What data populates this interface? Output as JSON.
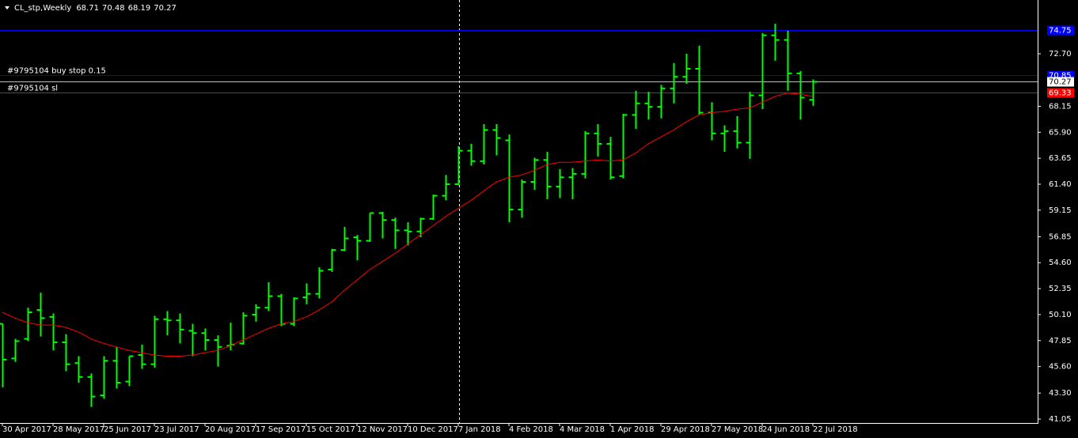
{
  "chart_data": {
    "type": "ohlc",
    "symbol": "CL_stp,Weekly",
    "categories": [
      "30 Apr 2017",
      null,
      null,
      null,
      "28 May 2017",
      null,
      null,
      null,
      "25 Jun 2017",
      null,
      null,
      null,
      "23 Jul 2017",
      null,
      null,
      null,
      "20 Aug 2017",
      null,
      null,
      null,
      "17 Sep 2017",
      null,
      null,
      null,
      "15 Oct 2017",
      null,
      null,
      null,
      "12 Nov 2017",
      null,
      null,
      null,
      "10 Dec 2017",
      null,
      null,
      null,
      "7 Jan 2018",
      null,
      null,
      null,
      "4 Feb 2018",
      null,
      null,
      null,
      "4 Mar 2018",
      null,
      null,
      null,
      "1 Apr 2018",
      null,
      null,
      null,
      "29 Apr 2018",
      null,
      null,
      null,
      "27 May 2018",
      null,
      null,
      null,
      "24 Jun 2018",
      null,
      null,
      null,
      "22 Jul 2018"
    ],
    "open": [
      49.3,
      46.3,
      48.0,
      50.5,
      49.9,
      47.7,
      45.9,
      44.7,
      43.1,
      46.1,
      44.3,
      46.6,
      45.8,
      49.7,
      49.6,
      48.7,
      48.5,
      47.9,
      47.4,
      47.6,
      50.1,
      50.7,
      51.7,
      49.3,
      51.6,
      51.9,
      54.0,
      55.7,
      56.8,
      56.5,
      58.9,
      58.3,
      57.4,
      57.3,
      58.4,
      60.4,
      61.4,
      64.3,
      63.4,
      66.1,
      65.2,
      59.2,
      61.6,
      63.5,
      61.2,
      62.0,
      62.3,
      65.8,
      64.9,
      62.1,
      67.4,
      68.4,
      68.1,
      69.7,
      70.7,
      71.4,
      67.6,
      65.8,
      66.0,
      65.0,
      69.1,
      74.3,
      73.9,
      71.0,
      68.71
    ],
    "high": [
      49.3,
      48.0,
      50.7,
      52.0,
      50.2,
      48.4,
      46.5,
      45.0,
      46.5,
      47.3,
      46.5,
      47.5,
      50.0,
      50.4,
      50.2,
      49.3,
      48.9,
      48.3,
      49.4,
      50.3,
      51.0,
      52.9,
      51.9,
      51.6,
      52.8,
      54.2,
      55.8,
      57.7,
      57.0,
      58.9,
      59.0,
      58.5,
      58.1,
      58.5,
      60.5,
      62.2,
      64.7,
      64.9,
      66.6,
      66.6,
      65.7,
      61.8,
      63.7,
      64.2,
      62.7,
      62.8,
      66.0,
      66.6,
      65.5,
      67.5,
      69.5,
      69.4,
      70.0,
      71.9,
      72.7,
      73.4,
      68.5,
      66.5,
      67.3,
      69.4,
      74.5,
      75.3,
      74.7,
      71.2,
      70.48
    ],
    "low": [
      43.8,
      46.0,
      47.8,
      48.2,
      47.0,
      45.2,
      44.2,
      42.1,
      42.8,
      43.7,
      43.9,
      45.4,
      45.5,
      48.3,
      47.6,
      46.5,
      47.0,
      45.6,
      47.0,
      47.5,
      49.5,
      50.4,
      49.1,
      49.1,
      51.0,
      51.5,
      53.8,
      55.6,
      54.8,
      56.4,
      56.7,
      55.8,
      56.1,
      56.8,
      58.3,
      60.0,
      61.3,
      63.0,
      63.1,
      63.9,
      58.1,
      58.5,
      60.9,
      60.1,
      60.2,
      60.1,
      61.9,
      63.8,
      61.8,
      61.9,
      66.2,
      67.0,
      67.1,
      68.4,
      70.1,
      67.4,
      65.2,
      64.2,
      64.5,
      63.6,
      67.9,
      72.1,
      69.5,
      67.0,
      68.19
    ],
    "close": [
      46.2,
      47.8,
      50.3,
      49.8,
      47.7,
      45.8,
      44.7,
      43.0,
      46.1,
      44.2,
      46.5,
      45.8,
      49.7,
      49.6,
      48.8,
      48.5,
      47.9,
      47.3,
      47.5,
      50.0,
      50.7,
      51.7,
      49.3,
      51.5,
      51.9,
      53.9,
      55.7,
      56.7,
      56.5,
      58.9,
      58.3,
      57.4,
      57.3,
      58.4,
      60.4,
      61.4,
      64.3,
      63.4,
      66.1,
      65.4,
      59.2,
      61.6,
      63.5,
      61.2,
      62.0,
      62.3,
      65.8,
      64.9,
      62.0,
      67.4,
      68.4,
      68.1,
      69.7,
      70.7,
      71.4,
      67.6,
      65.8,
      66.0,
      65.0,
      69.1,
      74.3,
      73.9,
      71.0,
      68.9,
      70.27
    ],
    "bar_color": "#00ff00",
    "ma": {
      "color": "#ff0000",
      "values": [
        50.3,
        49.8,
        49.4,
        49.2,
        49.2,
        49.0,
        48.6,
        48.0,
        47.6,
        47.3,
        47.0,
        46.8,
        46.6,
        46.5,
        46.5,
        46.6,
        46.8,
        47.0,
        47.4,
        47.9,
        48.4,
        48.9,
        49.3,
        49.5,
        49.9,
        50.5,
        51.2,
        52.2,
        53.1,
        54.0,
        54.7,
        55.4,
        56.2,
        57.0,
        57.8,
        58.6,
        59.3,
        60.0,
        60.8,
        61.6,
        62.0,
        62.2,
        62.6,
        63.1,
        63.3,
        63.3,
        63.4,
        63.5,
        63.4,
        63.5,
        64.1,
        64.9,
        65.5,
        66.1,
        66.8,
        67.4,
        67.6,
        67.7,
        67.9,
        68.0,
        68.5,
        69.0,
        69.3,
        69.2,
        69.0
      ]
    },
    "levels": [
      {
        "value": 74.75,
        "color": "#0000ff"
      },
      {
        "value": 70.85,
        "color": "#0000ff",
        "text": "#9795104 buy stop 0.15"
      },
      {
        "value": 70.27,
        "color": "#c0c0c0"
      },
      {
        "value": 69.33,
        "color": "#ff0000",
        "text": "#9795104 sl"
      }
    ],
    "ylim": [
      40.71,
      77.36
    ],
    "yticks": [
      41.05,
      {
        "value": 43.3,
        "label": "43.30"
      },
      {
        "value": 45.6,
        "label": "45.60"
      },
      47.85,
      {
        "value": 50.1,
        "label": "50.10"
      },
      52.35,
      {
        "value": 54.6,
        "label": "54.60"
      },
      56.85,
      59.15,
      {
        "value": 61.4,
        "label": "61.40"
      },
      63.65,
      {
        "value": 65.9,
        "label": "65.90"
      },
      68.15,
      {
        "value": 72.7,
        "label": "72.70"
      }
    ]
  }
}
